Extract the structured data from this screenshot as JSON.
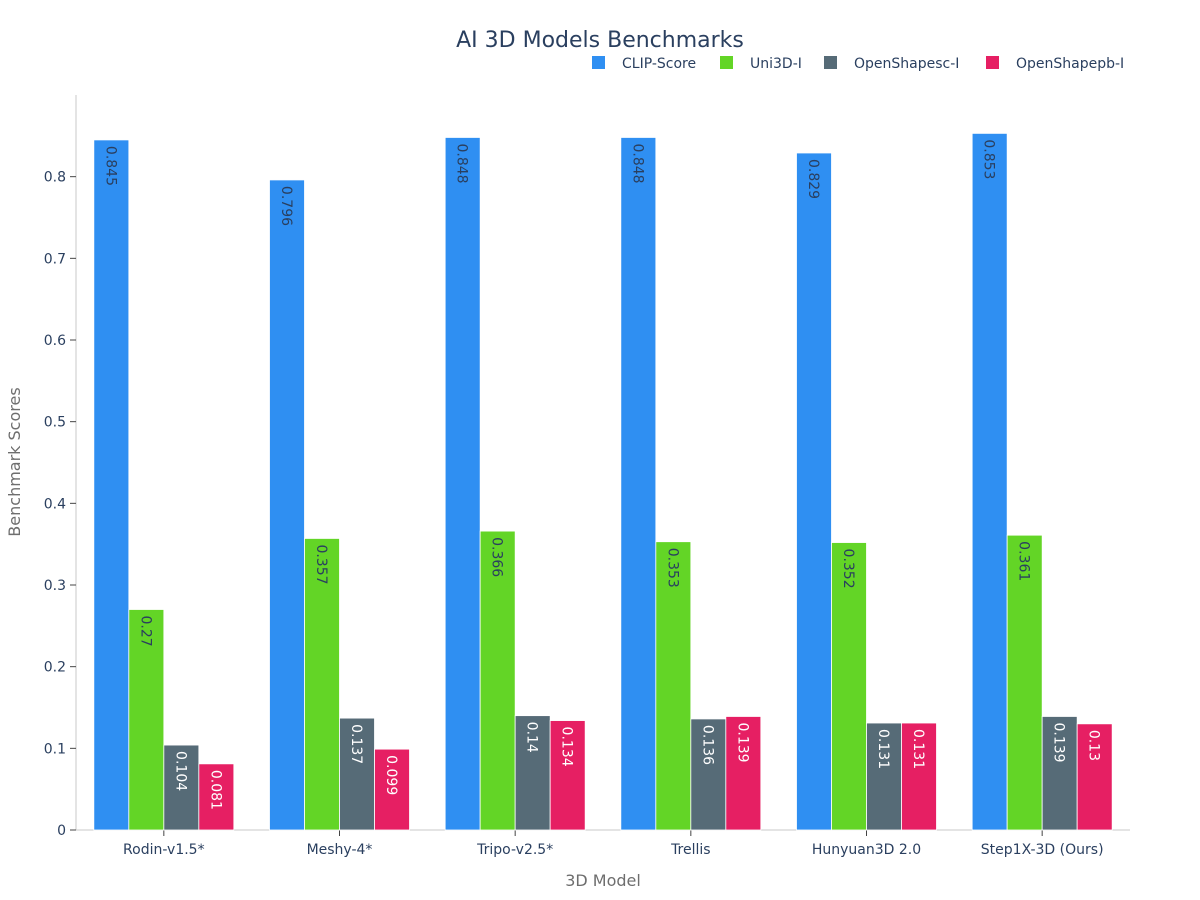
{
  "chart_data": {
    "type": "bar",
    "title": "AI 3D Models Benchmarks",
    "xlabel": "3D Model",
    "ylabel": "Benchmark Scores",
    "categories": [
      "Rodin-v1.5*",
      "Meshy-4*",
      "Tripo-v2.5*",
      "Trellis",
      "Hunyuan3D 2.0",
      "Step1X-3D (Ours)"
    ],
    "series": [
      {
        "name": "CLIP-Score",
        "color": "#2f8ff2",
        "label_color": "#2a3f5f",
        "values": [
          0.845,
          0.796,
          0.848,
          0.848,
          0.829,
          0.853
        ]
      },
      {
        "name": "Uni3D-I",
        "color": "#63d526",
        "label_color": "#2a3f5f",
        "values": [
          0.27,
          0.357,
          0.366,
          0.353,
          0.352,
          0.361
        ]
      },
      {
        "name": "OpenShapesc-I",
        "color": "#566b77",
        "label_color": "#ffffff",
        "values": [
          0.104,
          0.137,
          0.14,
          0.136,
          0.131,
          0.139
        ]
      },
      {
        "name": "OpenShapepb-I",
        "color": "#e61f63",
        "label_color": "#ffffff",
        "values": [
          0.081,
          0.099,
          0.134,
          0.139,
          0.131,
          0.13
        ]
      }
    ],
    "ylim": [
      0,
      0.9
    ],
    "yticks": [
      0,
      0.1,
      0.2,
      0.3,
      0.4,
      0.5,
      0.6,
      0.7,
      0.8
    ],
    "legend_position": "top-right",
    "grid": false
  }
}
